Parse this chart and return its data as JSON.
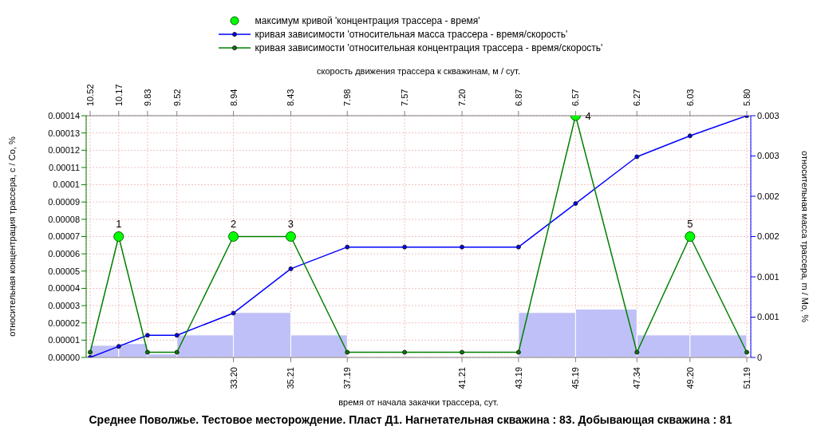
{
  "chart_data": {
    "type": "histogram",
    "title": "Среднее Поволжье. Тестовое месторождение. Пласт Д1. Нагнетательная скважина : 83. Добывающая скважина : 81",
    "xlabel": "время от начала закачки трассера,  сут.",
    "x2label": "скорость движения трассера к скважинам,  м / сут.",
    "ylabel": "относительная концентрация трассера, c / Co, %",
    "y2label": "относительная масса трассера, m / Mo, %",
    "bins": [
      28.18,
      29.18,
      30.19,
      31.22,
      33.2,
      35.21,
      37.19,
      43.19,
      45.19,
      47.34,
      49.2,
      51.19
    ],
    "values": [
      7e-06,
      8e-06,
      2e-06,
      1.3e-05,
      2.6e-05,
      1.3e-05,
      0,
      2.6e-05,
      2.8e-05,
      1.3e-05,
      1.3e-05
    ],
    "color": "#c0c0f8",
    "series": [
      {
        "name": "максимум кривой 'концентрация трассера - время'",
        "type": "scatter",
        "color": "#00ff00",
        "marker": "circle",
        "x": [
          29.18,
          33.2,
          35.21,
          45.19,
          49.2
        ],
        "values": [
          7e-05,
          7e-05,
          7e-05,
          0.00014,
          7e-05
        ]
      },
      {
        "name": "кривая зависимости 'относительная масса трассера - время/скорость'",
        "type": "line",
        "axis": "y2",
        "color": "#0000ff",
        "marker": "circle",
        "x": [
          28.18,
          29.18,
          30.19,
          31.22,
          33.2,
          35.21,
          37.19,
          39.2,
          41.21,
          43.19,
          45.19,
          47.34,
          49.2,
          51.19
        ],
        "values": [
          0,
          0.000137,
          0.000275,
          0.000275,
          0.00055,
          0.0011,
          0.00137,
          0.00137,
          0.00137,
          0.00137,
          0.00191,
          0.00249,
          0.00275,
          0.003
        ]
      },
      {
        "name": "кривая зависимости 'относительная концентрация трассера - время/скорость'",
        "type": "line",
        "color": "#008000",
        "marker": "circle",
        "x": [
          28.18,
          29.18,
          30.19,
          31.22,
          33.2,
          35.21,
          37.19,
          39.2,
          41.21,
          43.19,
          45.19,
          47.34,
          49.2,
          51.19
        ],
        "values": [
          3e-06,
          7e-05,
          3e-06,
          3e-06,
          7e-05,
          7e-05,
          3e-06,
          3e-06,
          3e-06,
          3e-06,
          0.00014,
          3e-06,
          7e-05,
          3e-06
        ]
      }
    ],
    "xlim": [
      28.04,
      51.33
    ],
    "xticks": [
      {
        "value": 33.2,
        "label": "33.20"
      },
      35.21,
      37.19,
      41.21,
      43.19,
      45.19,
      47.34,
      {
        "value": 49.2,
        "label": "49.20"
      },
      51.19
    ],
    "ylim": [
      0,
      0.00014
    ],
    "yticks": [
      {
        "value": 0,
        "label": "0.00000"
      },
      {
        "value": 1e-05,
        "label": "0.00001"
      },
      {
        "value": 2e-05,
        "label": "0.00002"
      },
      {
        "value": 3e-05,
        "label": "0.00003"
      },
      {
        "value": 4e-05,
        "label": "0.00004"
      },
      {
        "value": 5e-05,
        "label": "0.00005"
      },
      {
        "value": 6e-05,
        "label": "0.00006"
      },
      {
        "value": 7e-05,
        "label": "0.00007"
      },
      {
        "value": 8e-05,
        "label": "0.00008"
      },
      {
        "value": 9e-05,
        "label": "0.00009"
      },
      {
        "value": 0.0001,
        "label": "0.0001"
      },
      {
        "value": 0.00011,
        "label": "0.00011"
      },
      {
        "value": 0.00012,
        "label": "0.00012"
      },
      {
        "value": 0.00013,
        "label": "0.00013"
      },
      {
        "value": 0.00014,
        "label": "0.00014"
      }
    ],
    "y2lim": [
      0,
      0.003
    ],
    "y2ticks": [
      0,
      {
        "value": 0.0005,
        "label": "0.001"
      },
      0.001,
      {
        "value": 0.0015,
        "label": "0.002"
      },
      0.002,
      {
        "value": 0.0025,
        "label": "0.003"
      },
      0.003
    ],
    "annotations": [
      {
        "text": "10.52",
        "x": 28.18
      },
      {
        "text": "10.17",
        "x": 29.18
      },
      {
        "text": "9.83",
        "x": 30.19
      },
      {
        "text": "9.52",
        "x": 31.22
      },
      {
        "text": "8.94",
        "x": 33.2
      },
      {
        "text": "8.43",
        "x": 35.21
      },
      {
        "text": "7.98",
        "x": 37.19
      },
      {
        "text": "7.57",
        "x": 39.2
      },
      {
        "text": "7.20",
        "x": 41.21
      },
      {
        "text": "6.87",
        "x": 43.19
      },
      {
        "text": "6.57",
        "x": 45.19
      },
      {
        "text": "6.27",
        "x": 47.34
      },
      {
        "text": "6.03",
        "x": 49.2
      },
      {
        "text": "5.80",
        "x": 51.19
      },
      {
        "text": "1",
        "x": 29.18,
        "y": 7e-05
      },
      {
        "text": "2",
        "x": 33.2,
        "y": 7e-05
      },
      {
        "text": "3",
        "x": 35.21,
        "y": 7e-05
      },
      {
        "text": "4",
        "x": 45.19,
        "y": 0.00014
      },
      {
        "text": "5",
        "x": 49.2,
        "y": 7e-05
      }
    ],
    "grid": true,
    "legend": "top"
  }
}
